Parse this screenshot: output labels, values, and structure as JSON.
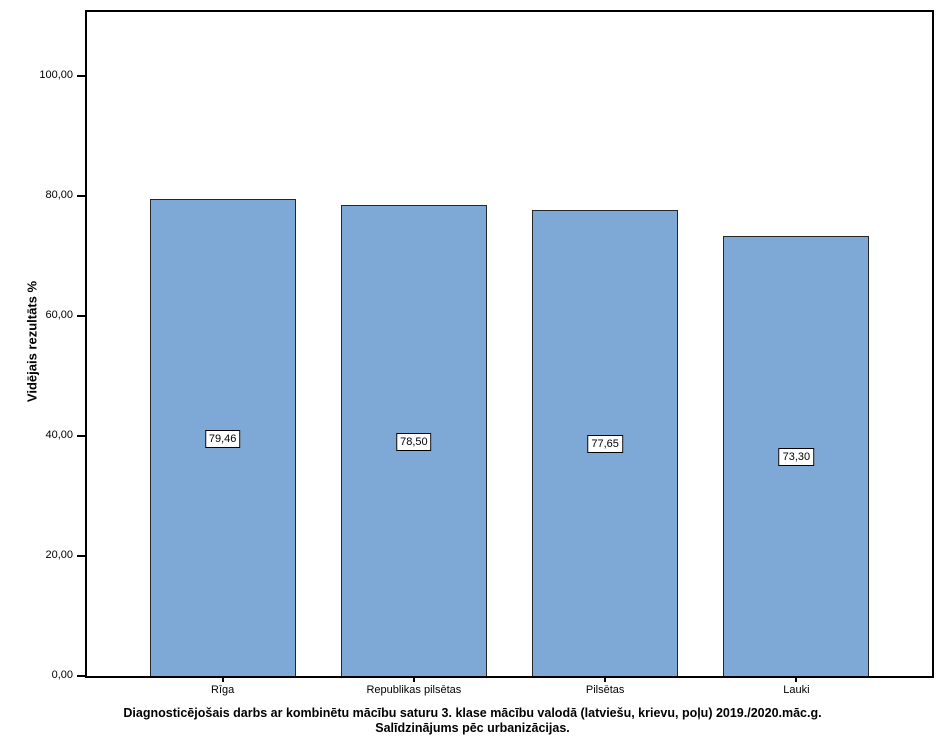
{
  "figure": {
    "title_line1": "Diagnosticējošais darbs ar kombinētu mācību saturu 3. klase mācību valodā (latviešu, krievu, poļu) 2019./2020.māc.g.",
    "title_line2": "Salīdzinājums pēc urbanizācijas."
  },
  "chart_data": {
    "type": "bar",
    "categories": [
      "Rīga",
      "Republikas pilsētas",
      "Pilsētas",
      "Lauki"
    ],
    "values": [
      79.46,
      78.5,
      77.65,
      73.3
    ],
    "value_labels": [
      "79,46",
      "78,50",
      "77,65",
      "73,30"
    ],
    "title": "Diagnosticējošais darbs ar kombinētu mācību saturu 3. klase mācību valodā (latviešu, krievu, poļu) 2019./2020.māc.g. Salīdzinājums pēc urbanizācijas.",
    "xlabel": "",
    "ylabel": "Vidējais rezultāts %",
    "ylim": [
      0,
      111.3
    ],
    "yticks": [
      {
        "value": 0,
        "label": "0,00"
      },
      {
        "value": 20,
        "label": "20,00"
      },
      {
        "value": 40,
        "label": "40,00"
      },
      {
        "value": 60,
        "label": "60,00"
      },
      {
        "value": 80,
        "label": "80,00"
      },
      {
        "value": 100,
        "label": "100,00"
      }
    ],
    "grid": false,
    "legend": null,
    "bar_color": "#7EA8D5",
    "bar_border_color": "#262626",
    "frame_color": "#000000"
  }
}
